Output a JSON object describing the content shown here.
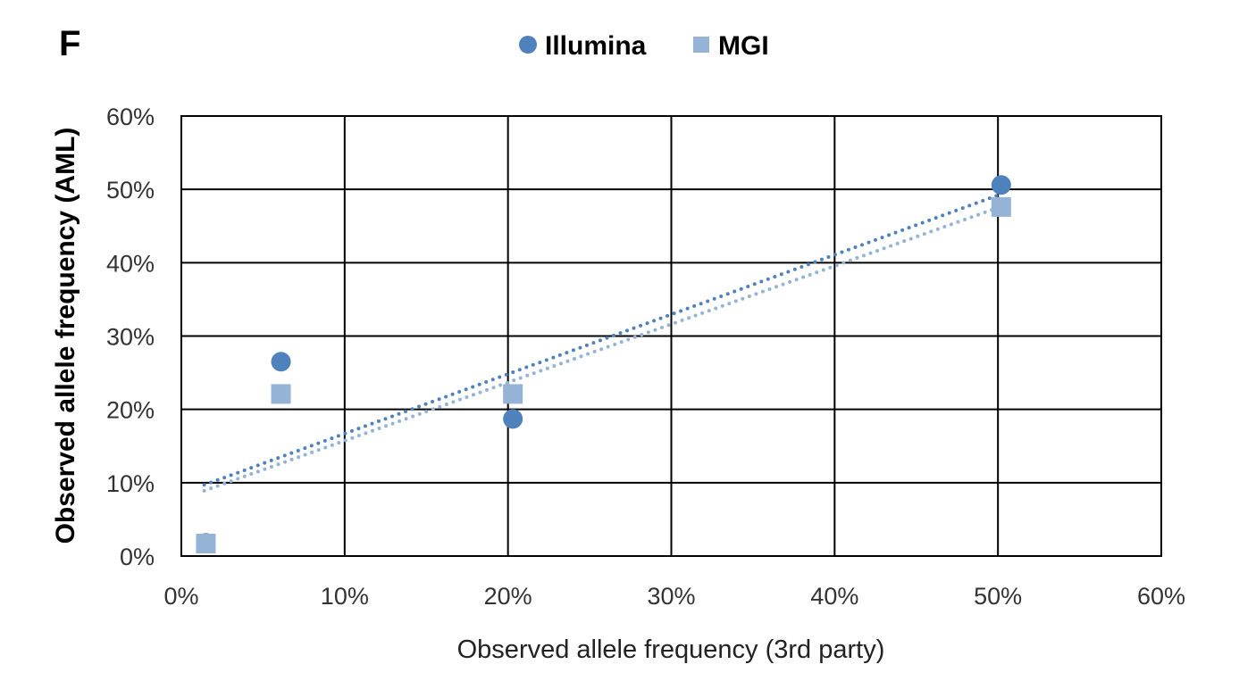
{
  "panel_label": "F",
  "chart_data": {
    "type": "scatter",
    "title": "",
    "xlabel": "Observed allele frequency (3rd party)",
    "ylabel": "Observed allele frequency (AML)",
    "xlim": [
      0,
      60
    ],
    "ylim": [
      0,
      60
    ],
    "x_ticks": [
      0,
      10,
      20,
      30,
      40,
      50,
      60
    ],
    "y_ticks": [
      0,
      10,
      20,
      30,
      40,
      50,
      60
    ],
    "x_tick_labels": [
      "0%",
      "10%",
      "20%",
      "30%",
      "40%",
      "50%",
      "60%"
    ],
    "y_tick_labels": [
      "0%",
      "10%",
      "20%",
      "30%",
      "40%",
      "50%",
      "60%"
    ],
    "grid": true,
    "legend": "top-center",
    "series": [
      {
        "name": "Illumina",
        "marker": "circle",
        "color": "#4f81bd",
        "x": [
          1.5,
          6.1,
          20.3,
          50.2
        ],
        "y": [
          1.8,
          26.5,
          18.7,
          50.6
        ],
        "trendline": {
          "style": "dotted",
          "x": [
            1.4,
            50.0
          ],
          "y": [
            9.7,
            49.2
          ]
        }
      },
      {
        "name": "MGI",
        "marker": "square",
        "color": "#95b3d7",
        "x": [
          1.5,
          6.1,
          20.3,
          50.2
        ],
        "y": [
          1.7,
          22.1,
          22.1,
          47.6
        ],
        "trendline": {
          "style": "dotted",
          "x": [
            1.4,
            50.0
          ],
          "y": [
            8.9,
            47.5
          ]
        }
      }
    ]
  }
}
